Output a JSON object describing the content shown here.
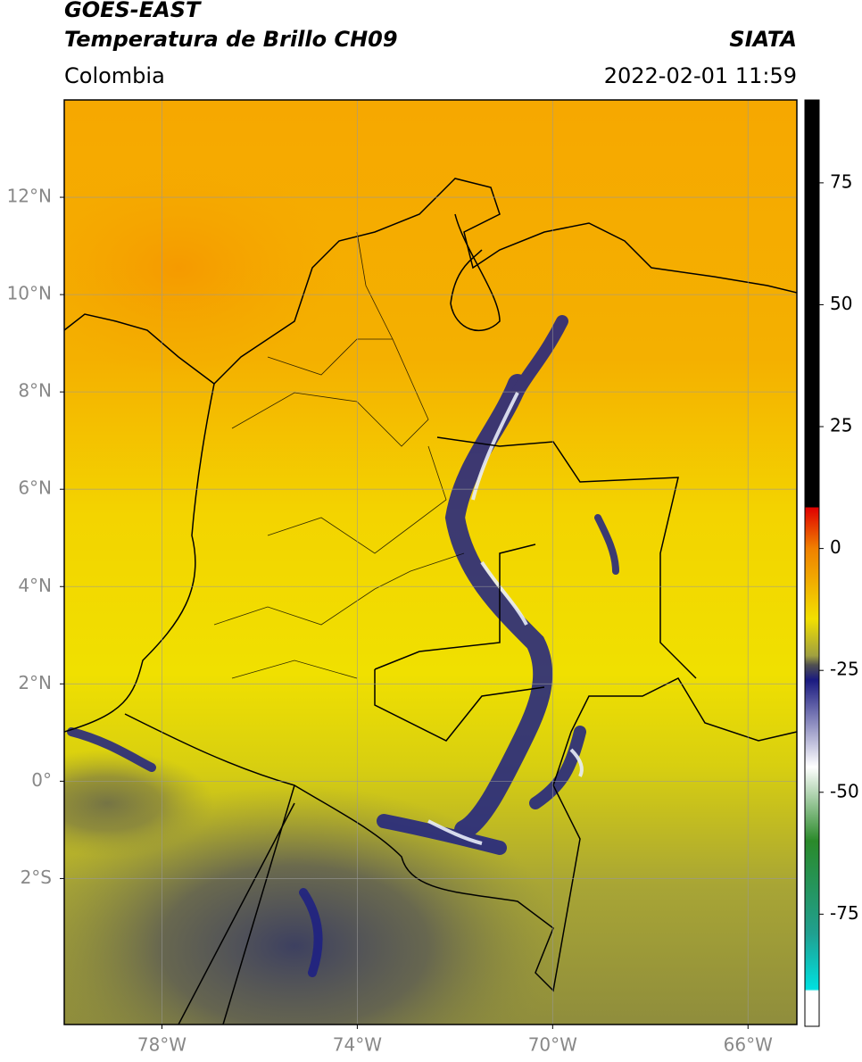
{
  "header": {
    "title": "GOES-EAST",
    "subtitle": "Temperatura de Brillo CH09",
    "source": "SIATA",
    "region": "Colombia",
    "datetime": "2022-02-01 11:59"
  },
  "map": {
    "xlim": [
      -80,
      -65
    ],
    "ylim": [
      -5,
      14
    ],
    "xticks": [
      {
        "value": -78,
        "label": "78°W"
      },
      {
        "value": -74,
        "label": "74°W"
      },
      {
        "value": -70,
        "label": "70°W"
      },
      {
        "value": -66,
        "label": "66°W"
      }
    ],
    "yticks": [
      {
        "value": 12,
        "label": "12°N"
      },
      {
        "value": 10,
        "label": "10°N"
      },
      {
        "value": 8,
        "label": "8°N"
      },
      {
        "value": 6,
        "label": "6°N"
      },
      {
        "value": 4,
        "label": "4°N"
      },
      {
        "value": 2,
        "label": "2°N"
      },
      {
        "value": 0,
        "label": "0°"
      },
      {
        "value": -2,
        "label": "2°S"
      }
    ],
    "grid": true
  },
  "colorbar": {
    "lim": [
      -98,
      92
    ],
    "ticks": [
      75,
      50,
      25,
      0,
      -25,
      -50,
      -75
    ]
  }
}
